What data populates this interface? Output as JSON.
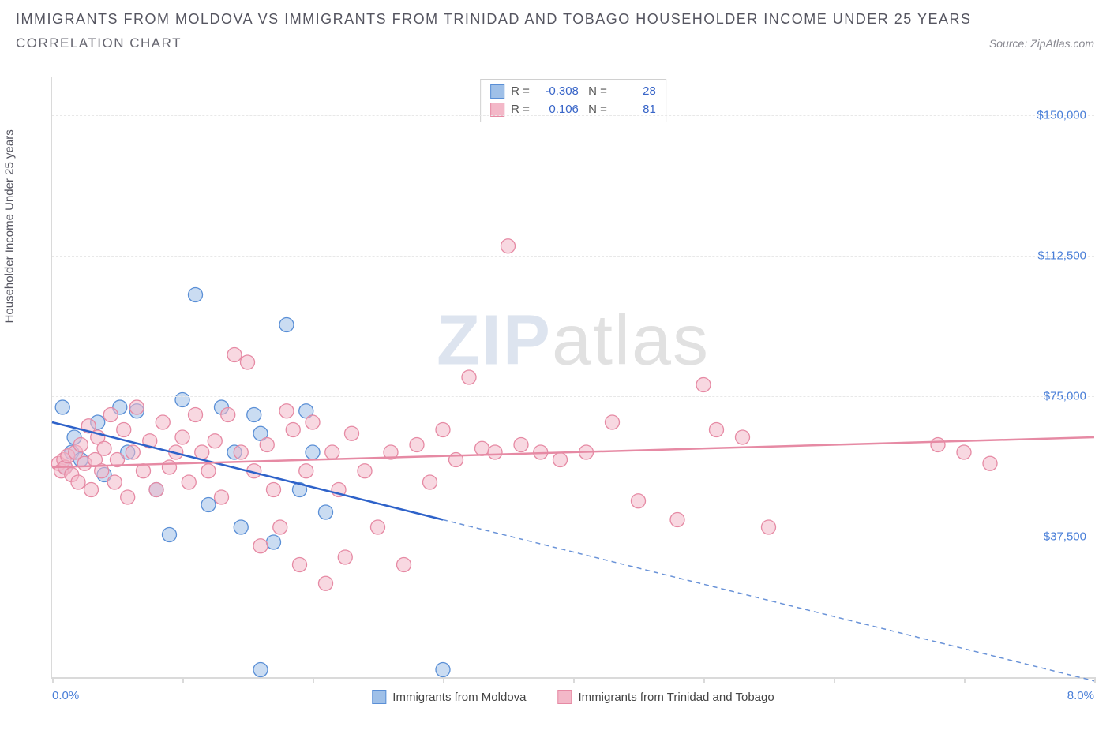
{
  "title": "IMMIGRANTS FROM MOLDOVA VS IMMIGRANTS FROM TRINIDAD AND TOBAGO HOUSEHOLDER INCOME UNDER 25 YEARS",
  "subtitle": "CORRELATION CHART",
  "source_label": "Source: ZipAtlas.com",
  "ylabel": "Householder Income Under 25 years",
  "watermark_zip": "ZIP",
  "watermark_atlas": "atlas",
  "chart": {
    "type": "scatter",
    "background_color": "#ffffff",
    "grid_color": "#e8e8e8",
    "axis_color": "#dadada",
    "xlim": [
      0.0,
      8.0
    ],
    "ylim": [
      0,
      160000
    ],
    "x_unit": "%",
    "y_prefix": "$",
    "yticks": [
      {
        "v": 37500,
        "label": "$37,500"
      },
      {
        "v": 75000,
        "label": "$75,000"
      },
      {
        "v": 112500,
        "label": "$112,500"
      },
      {
        "v": 150000,
        "label": "$150,000"
      }
    ],
    "xtick_positions": [
      0,
      1,
      2,
      3,
      4,
      5,
      6,
      7,
      8
    ],
    "xtick_labels": {
      "0": "0.0%",
      "8": "8.0%"
    },
    "marker_radius": 9,
    "marker_opacity": 0.55,
    "line_width": 2.5,
    "series": [
      {
        "name": "Immigrants from Moldova",
        "color_stroke": "#5a8fd6",
        "color_fill": "#9fc0e8",
        "r": -0.308,
        "n": 28,
        "trend": {
          "x1": 0.0,
          "y1": 68000,
          "x2": 3.0,
          "y2": 42000,
          "dash_after_x": 3.0,
          "x3": 8.0,
          "y3": -1000
        },
        "points": [
          [
            0.08,
            72000
          ],
          [
            0.1,
            56000
          ],
          [
            0.15,
            60000
          ],
          [
            0.17,
            64000
          ],
          [
            0.22,
            58000
          ],
          [
            0.35,
            68000
          ],
          [
            0.4,
            54000
          ],
          [
            0.52,
            72000
          ],
          [
            0.58,
            60000
          ],
          [
            0.65,
            71000
          ],
          [
            0.8,
            50000
          ],
          [
            0.9,
            38000
          ],
          [
            1.0,
            74000
          ],
          [
            1.1,
            102000
          ],
          [
            1.2,
            46000
          ],
          [
            1.3,
            72000
          ],
          [
            1.4,
            60000
          ],
          [
            1.45,
            40000
          ],
          [
            1.55,
            70000
          ],
          [
            1.6,
            65000
          ],
          [
            1.7,
            36000
          ],
          [
            1.8,
            94000
          ],
          [
            1.9,
            50000
          ],
          [
            1.6,
            2000
          ],
          [
            1.95,
            71000
          ],
          [
            2.0,
            60000
          ],
          [
            2.1,
            44000
          ],
          [
            3.0,
            2000
          ]
        ]
      },
      {
        "name": "Immigrants from Trinidad and Tobago",
        "color_stroke": "#e68aa4",
        "color_fill": "#f3b8c8",
        "r": 0.106,
        "n": 81,
        "trend": {
          "x1": 0.0,
          "y1": 56000,
          "x2": 8.0,
          "y2": 64000
        },
        "points": [
          [
            0.05,
            57000
          ],
          [
            0.07,
            55000
          ],
          [
            0.09,
            58000
          ],
          [
            0.1,
            56000
          ],
          [
            0.12,
            59000
          ],
          [
            0.15,
            54000
          ],
          [
            0.18,
            60000
          ],
          [
            0.2,
            52000
          ],
          [
            0.22,
            62000
          ],
          [
            0.25,
            57000
          ],
          [
            0.28,
            67000
          ],
          [
            0.3,
            50000
          ],
          [
            0.33,
            58000
          ],
          [
            0.35,
            64000
          ],
          [
            0.38,
            55000
          ],
          [
            0.4,
            61000
          ],
          [
            0.45,
            70000
          ],
          [
            0.48,
            52000
          ],
          [
            0.5,
            58000
          ],
          [
            0.55,
            66000
          ],
          [
            0.58,
            48000
          ],
          [
            0.62,
            60000
          ],
          [
            0.65,
            72000
          ],
          [
            0.7,
            55000
          ],
          [
            0.75,
            63000
          ],
          [
            0.8,
            50000
          ],
          [
            0.85,
            68000
          ],
          [
            0.9,
            56000
          ],
          [
            0.95,
            60000
          ],
          [
            1.0,
            64000
          ],
          [
            1.05,
            52000
          ],
          [
            1.1,
            70000
          ],
          [
            1.15,
            60000
          ],
          [
            1.2,
            55000
          ],
          [
            1.25,
            63000
          ],
          [
            1.3,
            48000
          ],
          [
            1.35,
            70000
          ],
          [
            1.4,
            86000
          ],
          [
            1.45,
            60000
          ],
          [
            1.5,
            84000
          ],
          [
            1.55,
            55000
          ],
          [
            1.6,
            35000
          ],
          [
            1.65,
            62000
          ],
          [
            1.7,
            50000
          ],
          [
            1.75,
            40000
          ],
          [
            1.8,
            71000
          ],
          [
            1.85,
            66000
          ],
          [
            1.9,
            30000
          ],
          [
            1.95,
            55000
          ],
          [
            2.0,
            68000
          ],
          [
            2.1,
            25000
          ],
          [
            2.15,
            60000
          ],
          [
            2.2,
            50000
          ],
          [
            2.25,
            32000
          ],
          [
            2.3,
            65000
          ],
          [
            2.4,
            55000
          ],
          [
            2.5,
            40000
          ],
          [
            2.6,
            60000
          ],
          [
            2.7,
            30000
          ],
          [
            2.8,
            62000
          ],
          [
            2.9,
            52000
          ],
          [
            3.0,
            66000
          ],
          [
            3.1,
            58000
          ],
          [
            3.2,
            80000
          ],
          [
            3.3,
            61000
          ],
          [
            3.4,
            60000
          ],
          [
            3.5,
            115000
          ],
          [
            3.6,
            62000
          ],
          [
            3.75,
            60000
          ],
          [
            3.9,
            58000
          ],
          [
            4.1,
            60000
          ],
          [
            4.3,
            68000
          ],
          [
            4.5,
            47000
          ],
          [
            4.8,
            42000
          ],
          [
            5.0,
            78000
          ],
          [
            5.1,
            66000
          ],
          [
            5.3,
            64000
          ],
          [
            6.8,
            62000
          ],
          [
            7.0,
            60000
          ],
          [
            7.2,
            57000
          ],
          [
            5.5,
            40000
          ]
        ]
      }
    ]
  },
  "legend_labels": {
    "r_prefix": "R =",
    "n_prefix": "N ="
  },
  "bottom_legend": [
    "Immigrants from Moldova",
    "Immigrants from Trinidad and Tobago"
  ]
}
